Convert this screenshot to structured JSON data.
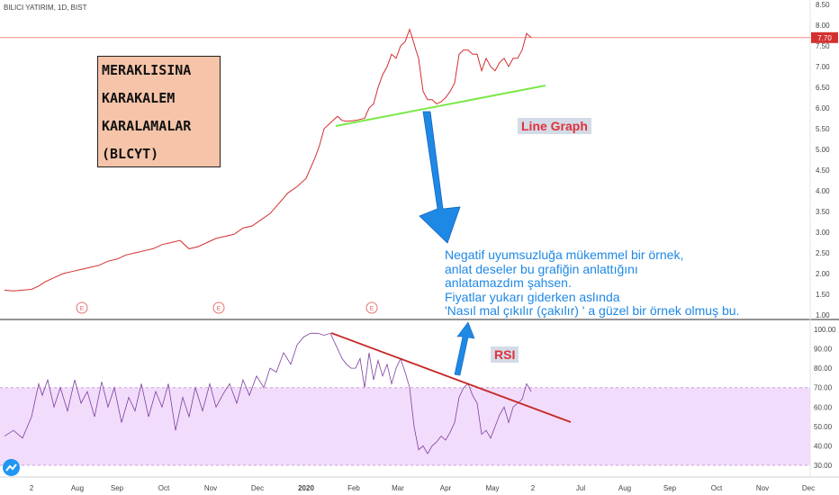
{
  "header": {
    "symbol_line": "BILICI YATIRIM, 1D, BIST"
  },
  "note_box": {
    "lines": [
      "MERAKLISINA",
      "KARAKALEM",
      "KARALAMALAR",
      "(BLCYT)"
    ]
  },
  "labels": {
    "line_graph": "Line Graph",
    "rsi": "RSI"
  },
  "comment": {
    "lines": [
      "Negatif uyumsuzluğa mükemmel bir örnek,",
      "anlat deseler bu grafiğin anlattığını",
      "anlatamazdım şahsen.",
      "Fiyatlar yukarı giderken aslında",
      "'Nasıl mal çıkılır (çakılır) ' a güzel bir örnek olmuş bu."
    ]
  },
  "colors": {
    "price_line": "#d32f2f",
    "rsi_line": "#7b3fa0",
    "rsi_band": "#f2dcfb",
    "support_line": "#7ce84a",
    "divergence_line": "#c62828",
    "arrow": "#1e88e5",
    "box_fill": "#f5c4a9"
  },
  "chart_data": [
    {
      "type": "line",
      "name": "price",
      "ylim": [
        1.0,
        8.5
      ],
      "y_ticks": [
        1.0,
        1.5,
        2.0,
        2.5,
        3.0,
        3.5,
        4.0,
        4.5,
        5.0,
        5.5,
        6.0,
        6.5,
        7.0,
        7.5,
        8.0,
        8.5
      ],
      "y_tick_labels": [
        "1.00",
        "1.50",
        "2.00",
        "2.50",
        "3.00",
        "3.50",
        "4.00",
        "4.50",
        "5.00",
        "5.50",
        "6.00",
        "6.50",
        "7.00",
        "7.50",
        "8.00",
        "8.50"
      ],
      "last_price_label": "7.70",
      "last_price": 7.7,
      "earnings_markers": [
        {
          "x": 91,
          "text": "E"
        },
        {
          "x": 243,
          "text": "E"
        },
        {
          "x": 413,
          "text": "E"
        }
      ],
      "x": [
        0,
        10,
        20,
        30,
        38,
        45,
        55,
        65,
        75,
        85,
        95,
        105,
        115,
        125,
        135,
        145,
        155,
        165,
        175,
        185,
        195,
        205,
        215,
        225,
        235,
        245,
        255,
        265,
        275,
        285,
        295,
        305,
        315,
        325,
        335,
        345,
        350,
        355,
        360,
        365,
        370,
        375,
        380,
        390,
        400,
        405,
        410,
        415,
        420,
        425,
        430,
        435,
        440,
        445,
        450,
        453,
        457,
        460,
        465,
        470,
        475,
        480,
        485,
        490,
        495,
        500,
        505,
        510,
        515,
        520,
        525,
        530,
        535,
        540,
        545,
        550,
        555,
        560,
        565,
        570,
        575,
        580,
        585
      ],
      "values": [
        1.6,
        1.58,
        1.6,
        1.62,
        1.7,
        1.8,
        1.9,
        2.0,
        2.05,
        2.1,
        2.15,
        2.2,
        2.3,
        2.35,
        2.45,
        2.5,
        2.55,
        2.6,
        2.7,
        2.75,
        2.8,
        2.6,
        2.65,
        2.75,
        2.85,
        2.9,
        2.95,
        3.1,
        3.15,
        3.3,
        3.45,
        3.7,
        3.95,
        4.1,
        4.3,
        4.8,
        5.1,
        5.5,
        5.6,
        5.7,
        5.8,
        5.7,
        5.68,
        5.7,
        5.75,
        6.0,
        6.1,
        6.5,
        6.8,
        7.0,
        7.3,
        7.2,
        7.5,
        7.6,
        7.9,
        7.7,
        7.4,
        7.2,
        6.4,
        6.2,
        6.2,
        6.1,
        6.15,
        6.25,
        6.4,
        6.6,
        7.3,
        7.4,
        7.4,
        7.3,
        7.3,
        6.9,
        7.2,
        7.0,
        6.9,
        7.1,
        7.2,
        7.0,
        7.2,
        7.2,
        7.4,
        7.8,
        7.7
      ]
    },
    {
      "type": "line",
      "name": "RSI",
      "ylim": [
        25,
        105
      ],
      "y_ticks": [
        30,
        40,
        50,
        60,
        70,
        80,
        90,
        100
      ],
      "y_tick_labels": [
        "30.00",
        "40.00",
        "50.00",
        "60.00",
        "70.00",
        "80.00",
        "90.00",
        "100.00"
      ],
      "band": [
        30,
        70
      ],
      "x": [
        0,
        10,
        20,
        30,
        38,
        42,
        48,
        55,
        62,
        70,
        78,
        85,
        92,
        100,
        108,
        115,
        122,
        130,
        138,
        145,
        152,
        160,
        168,
        175,
        182,
        190,
        198,
        205,
        212,
        220,
        228,
        235,
        242,
        250,
        258,
        265,
        272,
        280,
        288,
        295,
        302,
        310,
        318,
        325,
        332,
        340,
        348,
        355,
        362,
        370,
        375,
        380,
        385,
        390,
        395,
        400,
        405,
        410,
        415,
        420,
        425,
        430,
        435,
        440,
        445,
        450,
        455,
        460,
        465,
        470,
        475,
        480,
        485,
        490,
        495,
        500,
        505,
        510,
        515,
        520,
        525,
        530,
        535,
        540,
        545,
        550,
        555,
        560,
        565,
        570,
        575,
        580,
        585
      ],
      "values": [
        45,
        48,
        44,
        55,
        72,
        66,
        74,
        60,
        70,
        58,
        74,
        62,
        68,
        55,
        73,
        60,
        70,
        52,
        65,
        58,
        72,
        55,
        68,
        60,
        72,
        48,
        65,
        55,
        70,
        58,
        72,
        60,
        66,
        72,
        62,
        74,
        66,
        76,
        70,
        80,
        78,
        88,
        82,
        92,
        96,
        98,
        98,
        97,
        98,
        90,
        85,
        82,
        80,
        80,
        85,
        70,
        88,
        74,
        84,
        76,
        82,
        72,
        80,
        85,
        78,
        70,
        50,
        38,
        40,
        36,
        40,
        42,
        45,
        43,
        47,
        52,
        65,
        70,
        72,
        66,
        62,
        46,
        48,
        44,
        50,
        56,
        60,
        52,
        60,
        62,
        64,
        72,
        68
      ]
    },
    {
      "type": "axis",
      "x_tick_labels": [
        "2",
        "Aug",
        "Sep",
        "Oct",
        "Nov",
        "Dec",
        "2020",
        "Feb",
        "Mar",
        "Apr",
        "May",
        "2",
        "Jul",
        "Aug",
        "Sep",
        "Oct",
        "Nov",
        "Dec"
      ]
    }
  ]
}
